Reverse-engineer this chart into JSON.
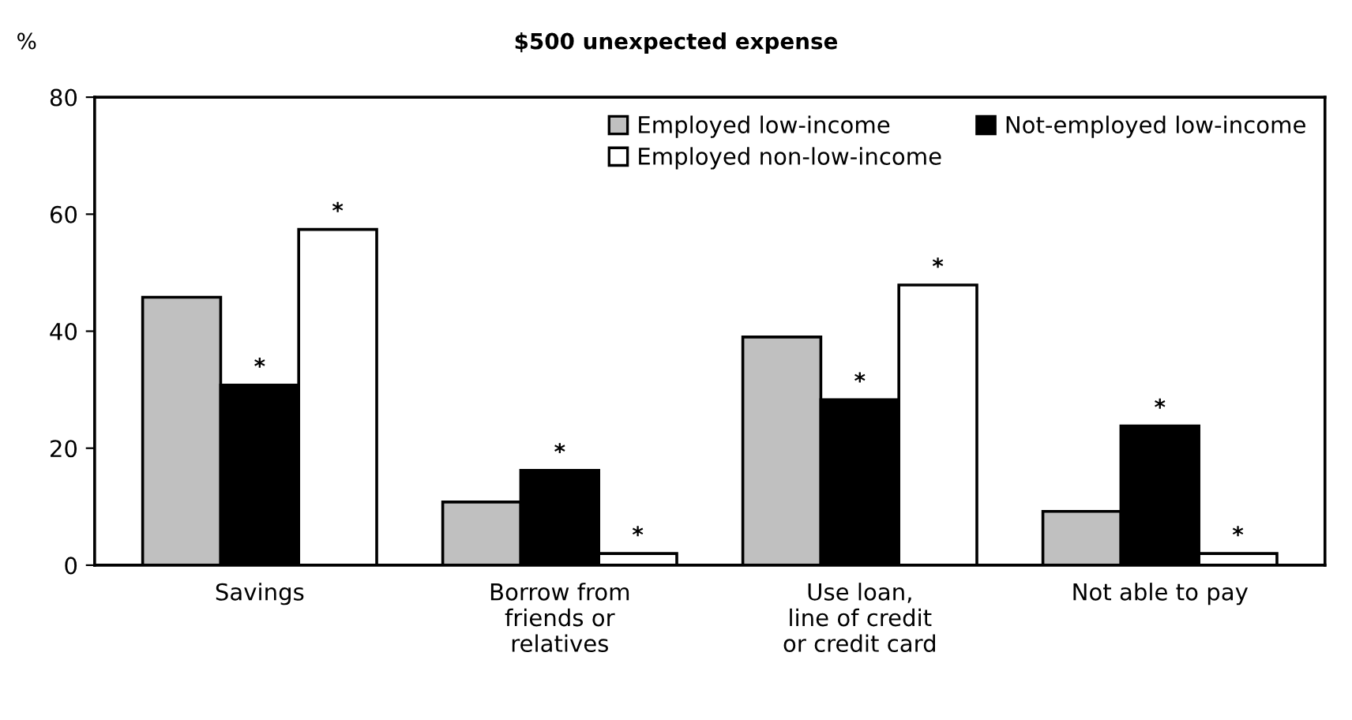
{
  "chart_data": {
    "type": "bar",
    "title": "$500 unexpected expense",
    "ylabel": "%",
    "categories": [
      "Savings",
      "Borrow from\nfriends or\nrelatives",
      "Use loan,\nline of credit\nor credit card",
      "Not able to pay"
    ],
    "series": [
      {
        "name": "Employed low-income",
        "color": "#c0c0c0",
        "values": [
          45.8,
          10.8,
          39.0,
          9.2
        ]
      },
      {
        "name": "Not-employed low-income",
        "color": "#000000",
        "values": [
          30.8,
          16.2,
          28.3,
          23.8
        ],
        "value_labels": [
          "*",
          "*",
          "*",
          "*"
        ]
      },
      {
        "name": "Employed non-low-income",
        "color": "#ffffff",
        "values": [
          57.4,
          2.0,
          47.9,
          2.0
        ],
        "value_labels": [
          "*",
          "*",
          "*",
          "*"
        ]
      }
    ],
    "ylim": [
      0,
      80
    ],
    "yticks": [
      0,
      20,
      40,
      60,
      80
    ],
    "grid": false,
    "legend": "top right"
  }
}
